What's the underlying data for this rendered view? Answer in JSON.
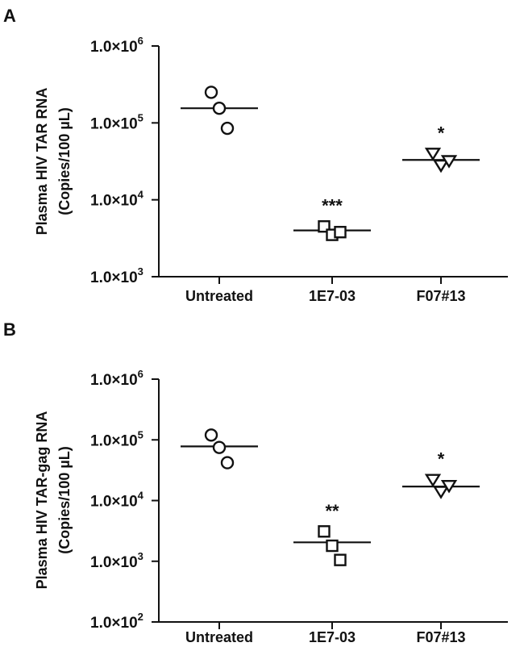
{
  "chart_data": [
    {
      "panel": "A",
      "type": "scatter",
      "ylabel": "Plasma HIV TAR RNA",
      "ylabel_units": "(Copies/100 µL)",
      "yscale": "log",
      "ylim": [
        1000,
        1000000
      ],
      "yticks": [
        {
          "base": "1.0×10",
          "exp": "3"
        },
        {
          "base": "1.0×10",
          "exp": "4"
        },
        {
          "base": "1.0×10",
          "exp": "5"
        },
        {
          "base": "1.0×10",
          "exp": "6"
        }
      ],
      "categories": [
        "Untreated",
        "1E7-03",
        "F07#13"
      ],
      "markers": [
        "circle",
        "square",
        "triangle-down"
      ],
      "points": [
        [
          250000,
          155000,
          85000
        ],
        [
          4500,
          3500,
          3800
        ],
        [
          40000,
          28000,
          32000
        ]
      ],
      "means": [
        155000,
        4000,
        33000
      ],
      "significance": [
        "",
        "***",
        "*"
      ]
    },
    {
      "panel": "B",
      "type": "scatter",
      "ylabel": "Plasma HIV TAR-gag RNA",
      "ylabel_units": "(Copies/100 µL)",
      "yscale": "log",
      "ylim": [
        100,
        1000000
      ],
      "yticks": [
        {
          "base": "1.0×10",
          "exp": "2"
        },
        {
          "base": "1.0×10",
          "exp": "3"
        },
        {
          "base": "1.0×10",
          "exp": "4"
        },
        {
          "base": "1.0×10",
          "exp": "5"
        },
        {
          "base": "1.0×10",
          "exp": "6"
        }
      ],
      "categories": [
        "Untreated",
        "1E7-03",
        "F07#13"
      ],
      "markers": [
        "circle",
        "square",
        "triangle-down"
      ],
      "points": [
        [
          120000,
          75000,
          42000
        ],
        [
          3100,
          1800,
          1050
        ],
        [
          22000,
          14000,
          17500
        ]
      ],
      "means": [
        78000,
        2050,
        17000
      ],
      "significance": [
        "",
        "**",
        "*"
      ]
    }
  ]
}
